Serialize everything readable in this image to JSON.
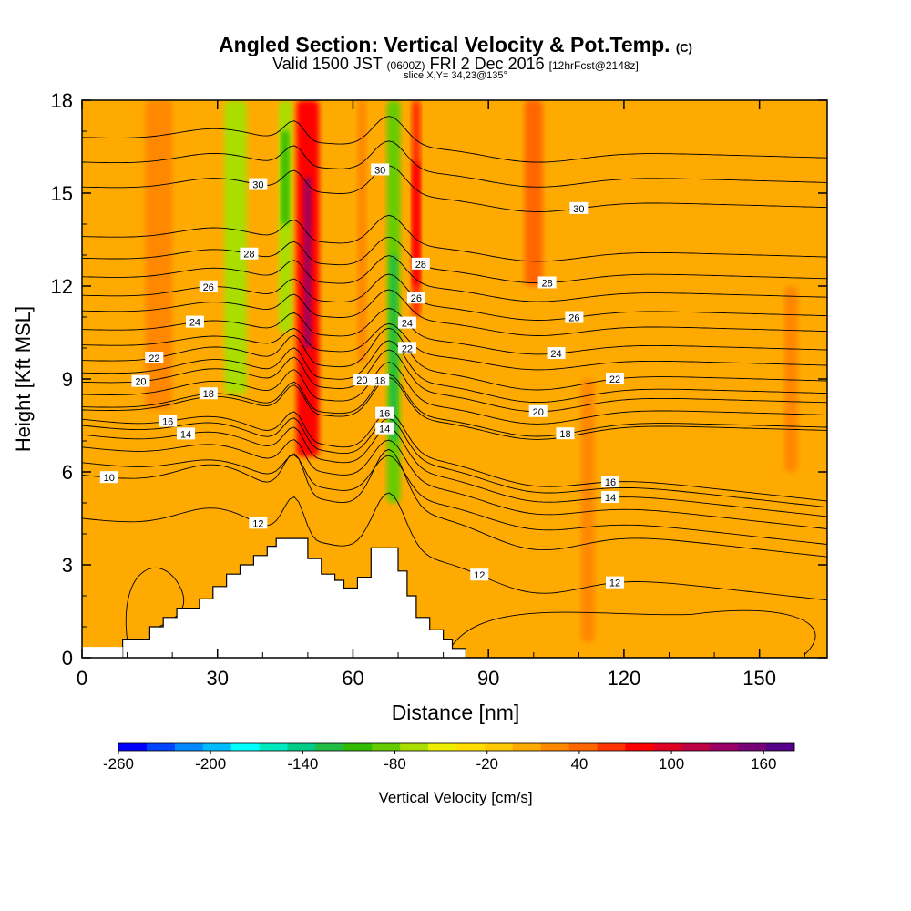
{
  "chart_data": {
    "type": "heatmap",
    "title": "Angled Section: Vertical Velocity & Pot.Temp.",
    "title_unit": "(C)",
    "subtitle_prefix": "Valid 1500 JST",
    "subtitle_utc": "(0600Z)",
    "subtitle_date": "FRI 2 Dec 2016",
    "subtitle_fcst": "[12hrFcst@2148z]",
    "slice_label": "slice X,Y= 34,23@135°",
    "xlabel": "Distance [nm]",
    "ylabel": "Height [Kft MSL]",
    "xlim": [
      0,
      165
    ],
    "ylim": [
      0,
      18
    ],
    "x_ticks": [
      0,
      30,
      60,
      90,
      120,
      150
    ],
    "y_ticks": [
      0,
      3,
      6,
      9,
      12,
      15,
      18
    ],
    "colorbar": {
      "label": "Vertical Velocity [cm/s]",
      "range": [
        -260,
        180
      ],
      "tick_labels": [
        "-260",
        "-200",
        "-140",
        "-80",
        "-20",
        "40",
        "100",
        "160"
      ],
      "tick_values": [
        -260,
        -200,
        -140,
        -80,
        -20,
        40,
        100,
        160
      ],
      "colors": [
        "#0000ff",
        "#0044ff",
        "#0088ff",
        "#00bbff",
        "#00ffff",
        "#00e8c0",
        "#00cc88",
        "#22bb44",
        "#33bb00",
        "#66cc00",
        "#aadd00",
        "#eeee00",
        "#ffdd00",
        "#ffc800",
        "#ffaa00",
        "#ff8800",
        "#ff6600",
        "#ff3300",
        "#ff0000",
        "#dd0022",
        "#bb0044",
        "#990066",
        "#770077",
        "#550088"
      ]
    },
    "velocity_features": [
      {
        "x": 34,
        "y_top": 18,
        "y_bottom": 8.5,
        "width": 5,
        "value": -60
      },
      {
        "x": 45,
        "y_top": 18,
        "y_bottom": 10.5,
        "width": 3,
        "value": -60
      },
      {
        "x": 50,
        "y_top": 18,
        "y_bottom": 6.5,
        "width": 5,
        "value": 80
      },
      {
        "x": 62,
        "y_top": 18,
        "y_bottom": 9.5,
        "width": 2,
        "value": 20
      },
      {
        "x": 69,
        "y_top": 18,
        "y_bottom": 5,
        "width": 3,
        "value": -90
      },
      {
        "x": 74,
        "y_top": 18,
        "y_bottom": 11,
        "width": 2,
        "value": 60
      },
      {
        "x": 17,
        "y_top": 18,
        "y_bottom": 8,
        "width": 6,
        "value": 15
      },
      {
        "x": 100,
        "y_top": 18,
        "y_bottom": 12,
        "width": 4,
        "value": 35
      },
      {
        "x": 112,
        "y_top": 9,
        "y_bottom": 0.5,
        "width": 3,
        "value": 30
      },
      {
        "x": 157,
        "y_top": 12,
        "y_bottom": 6,
        "width": 3,
        "value": 30
      }
    ],
    "terrain": [
      [
        0,
        0
      ],
      [
        9,
        0
      ],
      [
        9,
        0.6
      ],
      [
        15,
        0.6
      ],
      [
        15,
        1
      ],
      [
        18,
        1
      ],
      [
        18,
        1.3
      ],
      [
        21,
        1.3
      ],
      [
        21,
        1.6
      ],
      [
        26,
        1.6
      ],
      [
        26,
        1.9
      ],
      [
        29,
        1.9
      ],
      [
        29,
        2.3
      ],
      [
        32,
        2.3
      ],
      [
        32,
        2.7
      ],
      [
        35,
        2.7
      ],
      [
        35,
        3
      ],
      [
        38,
        3
      ],
      [
        38,
        3.3
      ],
      [
        41,
        3.3
      ],
      [
        41,
        3.6
      ],
      [
        43,
        3.6
      ],
      [
        43,
        3.85
      ],
      [
        50,
        3.85
      ],
      [
        50,
        3.2
      ],
      [
        53,
        3.2
      ],
      [
        53,
        2.7
      ],
      [
        56,
        2.7
      ],
      [
        56,
        2.5
      ],
      [
        58,
        2.5
      ],
      [
        58,
        2.25
      ],
      [
        61,
        2.25
      ],
      [
        61,
        2.6
      ],
      [
        64,
        2.6
      ],
      [
        64,
        3.55
      ],
      [
        70,
        3.55
      ],
      [
        70,
        2.8
      ],
      [
        72,
        2.8
      ],
      [
        72,
        2
      ],
      [
        74,
        2
      ],
      [
        74,
        1.3
      ],
      [
        77,
        1.3
      ],
      [
        77,
        0.9
      ],
      [
        80,
        0.9
      ],
      [
        80,
        0.6
      ],
      [
        82,
        0.6
      ],
      [
        82,
        0.3
      ],
      [
        85,
        0.3
      ],
      [
        85,
        0
      ]
    ],
    "theta_contours": [
      {
        "label": "10",
        "base": 5.9,
        "labels": [
          [
            6,
            "10"
          ]
        ]
      },
      {
        "label": "11",
        "base": 6.3,
        "labels": []
      },
      {
        "label": "12",
        "base": 4.5,
        "labels": [
          [
            39,
            "12"
          ],
          [
            88,
            "12"
          ],
          [
            118,
            "12"
          ]
        ]
      },
      {
        "label": "13",
        "base": 6.8,
        "labels": []
      },
      {
        "label": "14",
        "base": 7.2,
        "labels": [
          [
            23,
            "14"
          ],
          [
            67,
            "14"
          ],
          [
            117,
            "14"
          ]
        ]
      },
      {
        "label": "15",
        "base": 7.5,
        "labels": []
      },
      {
        "label": "16",
        "base": 7.7,
        "labels": [
          [
            19,
            "16"
          ],
          [
            67,
            "16"
          ],
          [
            117,
            "16"
          ]
        ]
      },
      {
        "label": "17",
        "base": 8.0,
        "labels": []
      },
      {
        "label": "18",
        "base": 8.1,
        "labels": [
          [
            28,
            "18"
          ],
          [
            66,
            "18"
          ],
          [
            107,
            "18"
          ]
        ]
      },
      {
        "label": "19",
        "base": 8.5,
        "labels": []
      },
      {
        "label": "20",
        "base": 8.9,
        "labels": [
          [
            13,
            "20"
          ],
          [
            62,
            "20"
          ],
          [
            101,
            "20"
          ]
        ]
      },
      {
        "label": "21",
        "base": 9.2,
        "labels": []
      },
      {
        "label": "22",
        "base": 9.6,
        "labels": [
          [
            16,
            "22"
          ],
          [
            72,
            "22"
          ],
          [
            118,
            "22"
          ]
        ]
      },
      {
        "label": "23",
        "base": 10.1,
        "labels": []
      },
      {
        "label": "24",
        "base": 10.6,
        "labels": [
          [
            25,
            "24"
          ],
          [
            72,
            "24"
          ],
          [
            105,
            "24"
          ]
        ]
      },
      {
        "label": "25",
        "base": 11.2,
        "labels": []
      },
      {
        "label": "26",
        "base": 11.7,
        "labels": [
          [
            28,
            "26"
          ],
          [
            74,
            "26"
          ],
          [
            109,
            "26"
          ]
        ]
      },
      {
        "label": "27",
        "base": 12.3,
        "labels": []
      },
      {
        "label": "28",
        "base": 12.9,
        "labels": [
          [
            37,
            "28"
          ],
          [
            75,
            "28"
          ],
          [
            103,
            "28"
          ]
        ]
      },
      {
        "label": "29",
        "base": 13.6,
        "labels": []
      },
      {
        "label": "30",
        "base": 15.2,
        "labels": [
          [
            39,
            "30"
          ],
          [
            66,
            "30"
          ],
          [
            110,
            "30"
          ]
        ]
      },
      {
        "label": "31",
        "base": 16.0,
        "labels": []
      },
      {
        "label": "32",
        "base": 16.8,
        "labels": []
      }
    ]
  }
}
